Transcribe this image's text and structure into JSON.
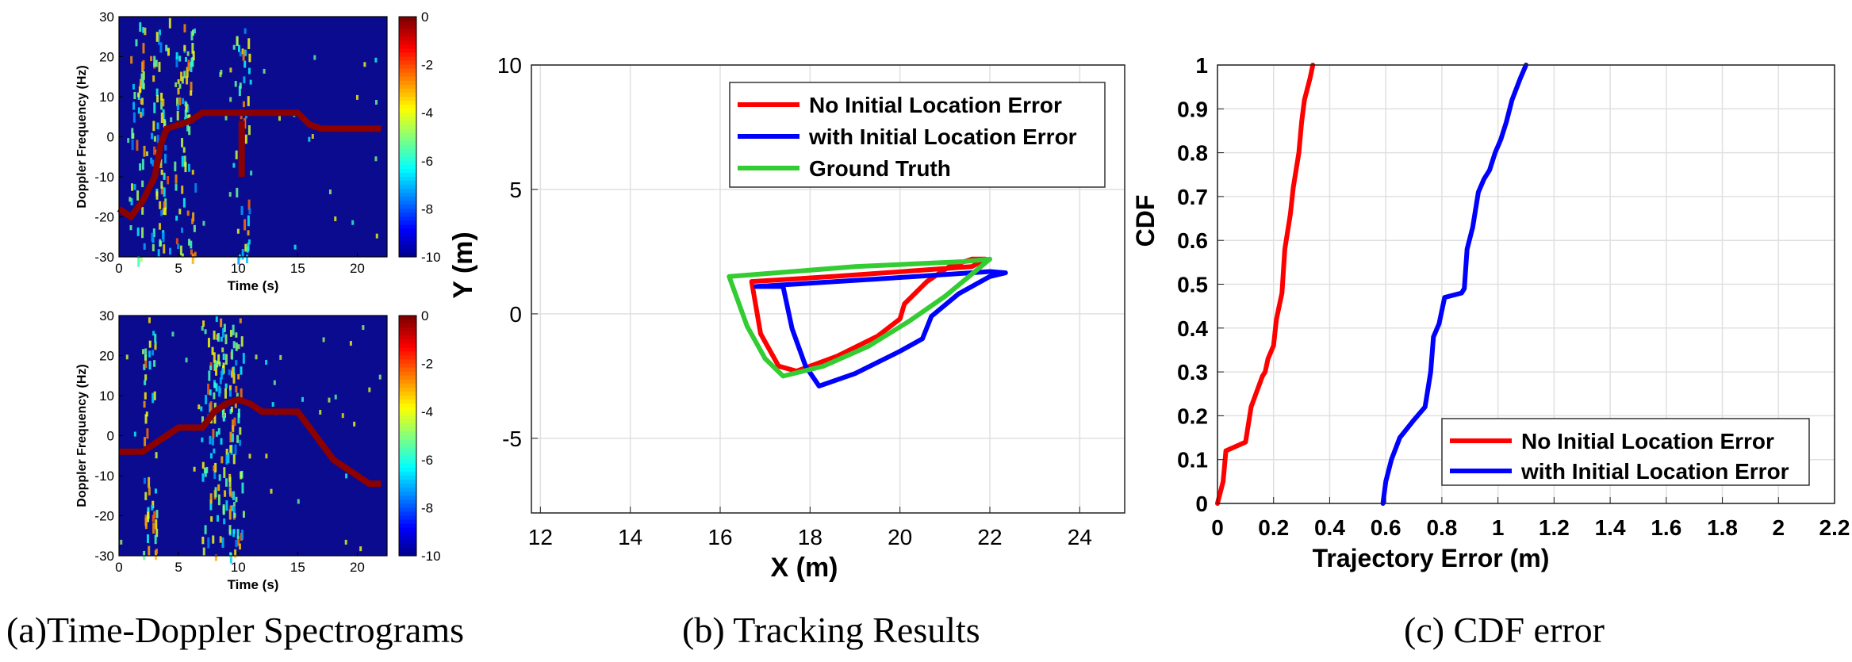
{
  "captions": {
    "a": "(a)Time-Doppler Spectrograms",
    "b": "(b) Tracking Results",
    "c": "(c) CDF error"
  },
  "chart_data": [
    {
      "id": "spec1",
      "type": "heatmap",
      "xlabel": "Time (s)",
      "ylabel": "Doppler Frequency (Hz)",
      "xlim": [
        0,
        22.5
      ],
      "ylim": [
        -30,
        30
      ],
      "xticks": [
        0,
        5,
        10,
        15,
        20
      ],
      "yticks": [
        -30,
        -20,
        -10,
        0,
        10,
        20,
        30
      ],
      "colorbar": {
        "min": -10,
        "max": 0,
        "ticks": [
          0,
          -2,
          -4,
          -6,
          -8,
          -10
        ]
      },
      "background": "#0b0b8f",
      "tracks": [
        {
          "t": [
            0,
            1,
            2,
            3,
            3.5,
            4,
            5,
            6,
            7,
            8,
            10,
            11,
            13,
            15,
            16,
            17,
            20,
            22
          ],
          "f": [
            -18,
            -20,
            -16,
            -10,
            -2,
            2,
            3,
            4,
            6,
            6,
            6,
            6,
            6,
            6,
            3,
            2,
            2,
            2
          ]
        },
        {
          "t": [
            10.3,
            10.3
          ],
          "f": [
            4,
            -10
          ]
        }
      ]
    },
    {
      "id": "spec2",
      "type": "heatmap",
      "xlabel": "Time (s)",
      "ylabel": "Doppler Frequency (Hz)",
      "xlim": [
        0,
        22.5
      ],
      "ylim": [
        -30,
        30
      ],
      "xticks": [
        0,
        5,
        10,
        15,
        20
      ],
      "yticks": [
        -30,
        -20,
        -10,
        0,
        10,
        20,
        30
      ],
      "colorbar": {
        "min": -10,
        "max": 0,
        "ticks": [
          0,
          -2,
          -4,
          -6,
          -8,
          -10
        ]
      },
      "background": "#0b0b8f",
      "tracks": [
        {
          "t": [
            0,
            2,
            3,
            4,
            5,
            7,
            8,
            9,
            10,
            11,
            12,
            14,
            15,
            16,
            17,
            18,
            20,
            21,
            22
          ],
          "f": [
            -4,
            -4,
            -2,
            0,
            2,
            2,
            6,
            8,
            9,
            8,
            6,
            6,
            6,
            2,
            -2,
            -6,
            -10,
            -12,
            -12
          ]
        }
      ]
    },
    {
      "id": "tracking",
      "type": "line",
      "xlabel": "X (m)",
      "ylabel": "Y (m)",
      "xlim": [
        11.8,
        25
      ],
      "ylim": [
        -8,
        10
      ],
      "xticks": [
        12,
        14,
        16,
        18,
        20,
        22,
        24
      ],
      "yticks": [
        -5,
        0,
        5,
        10
      ],
      "grid": true,
      "legend": "top-right",
      "series": [
        {
          "name": "No Initial Location Error",
          "color": "#ff0000",
          "x": [
            16.7,
            16.9,
            17.3,
            17.7,
            18.6,
            19.5,
            20.0,
            20.1,
            20.6,
            21.1,
            21.6,
            21.9,
            21.6,
            18.5,
            16.7
          ],
          "y": [
            1.3,
            -0.8,
            -2.1,
            -2.3,
            -1.7,
            -0.9,
            -0.2,
            0.4,
            1.3,
            1.9,
            2.2,
            2.2,
            1.9,
            1.5,
            1.3
          ]
        },
        {
          "name": "with Initial Location Error",
          "color": "#0000ff",
          "x": [
            16.8,
            17.4,
            17.6,
            17.9,
            18.2,
            19.0,
            20.0,
            20.5,
            20.7,
            21.3,
            22.0,
            22.35,
            22.0,
            19.5,
            16.8
          ],
          "y": [
            1.1,
            1.1,
            -0.6,
            -2.1,
            -2.9,
            -2.4,
            -1.5,
            -1.0,
            -0.1,
            0.8,
            1.5,
            1.65,
            1.7,
            1.4,
            1.1
          ]
        },
        {
          "name": "Ground Truth",
          "color": "#33cc33",
          "x": [
            16.2,
            16.6,
            17.0,
            17.4,
            18.3,
            19.3,
            20.2,
            21.0,
            21.6,
            22.0,
            21.4,
            19.0,
            16.2
          ],
          "y": [
            1.5,
            -0.5,
            -1.8,
            -2.5,
            -2.1,
            -1.3,
            -0.3,
            0.7,
            1.6,
            2.2,
            2.1,
            1.9,
            1.5
          ]
        }
      ]
    },
    {
      "id": "cdf",
      "type": "line",
      "xlabel": "Trajectory Error (m)",
      "ylabel": "CDF",
      "xlim": [
        0,
        2.2
      ],
      "ylim": [
        0,
        1
      ],
      "xticks": [
        0,
        0.2,
        0.4,
        0.6,
        0.8,
        1,
        1.2,
        1.4,
        1.6,
        1.8,
        2,
        2.2
      ],
      "xticklabels": [
        "0",
        "0.2",
        "0.4",
        "0.6",
        "0.8",
        "1",
        "1.2",
        "1.4",
        "1.6",
        "1.8",
        "2",
        "2.2"
      ],
      "yticks": [
        0,
        0.1,
        0.2,
        0.3,
        0.4,
        0.5,
        0.6,
        0.7,
        0.8,
        0.9,
        1
      ],
      "yticklabels": [
        "0",
        "0.1",
        "0.2",
        "0.3",
        "0.4",
        "0.5",
        "0.6",
        "0.7",
        "0.8",
        "0.9",
        "1"
      ],
      "grid": true,
      "legend": "bottom-right",
      "series": [
        {
          "name": "No Initial Location Error",
          "color": "#ff0000",
          "x": [
            0.0,
            0.02,
            0.03,
            0.1,
            0.12,
            0.16,
            0.17,
            0.18,
            0.2,
            0.21,
            0.23,
            0.24,
            0.26,
            0.27,
            0.29,
            0.3,
            0.31,
            0.33,
            0.34
          ],
          "y": [
            0.0,
            0.05,
            0.12,
            0.14,
            0.22,
            0.29,
            0.3,
            0.33,
            0.36,
            0.42,
            0.48,
            0.58,
            0.66,
            0.72,
            0.8,
            0.87,
            0.92,
            0.97,
            1.0
          ]
        },
        {
          "name": "with Initial Location Error",
          "color": "#0000ff",
          "x": [
            0.59,
            0.6,
            0.62,
            0.65,
            0.7,
            0.74,
            0.76,
            0.77,
            0.79,
            0.81,
            0.87,
            0.88,
            0.89,
            0.91,
            0.93,
            0.95,
            0.97,
            0.99,
            1.01,
            1.03,
            1.05,
            1.08,
            1.1
          ],
          "y": [
            0.0,
            0.05,
            0.1,
            0.15,
            0.19,
            0.22,
            0.3,
            0.38,
            0.41,
            0.47,
            0.48,
            0.49,
            0.58,
            0.63,
            0.71,
            0.74,
            0.76,
            0.8,
            0.83,
            0.87,
            0.92,
            0.97,
            1.0
          ]
        }
      ]
    }
  ]
}
